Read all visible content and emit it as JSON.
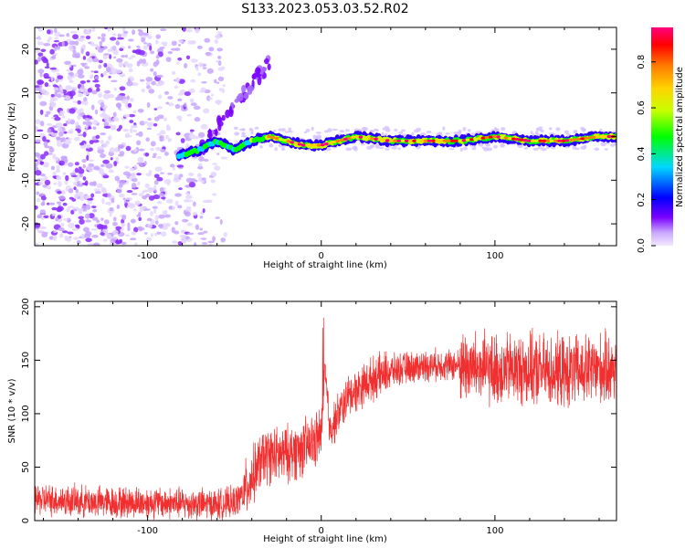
{
  "title": "S133.2023.053.03.52.R02",
  "chart_data": [
    {
      "type": "heatmap",
      "xlabel": "Height of straight line (km)",
      "ylabel": "Frequency (Hz)",
      "xlim": [
        -165,
        170
      ],
      "ylim": [
        -25,
        25
      ],
      "xticks": [
        -100,
        0,
        100
      ],
      "yticks": [
        -20,
        -10,
        0,
        10,
        20
      ],
      "grid": false,
      "colorbar": {
        "label": "Normalized spectral amplitude",
        "range": [
          0.0,
          0.95
        ],
        "ticks": [
          0.0,
          0.2,
          0.4,
          0.6,
          0.8
        ],
        "colormap": [
          "#f3e8ff",
          "#7a00ff",
          "#0000ff",
          "#00d8ff",
          "#00ff00",
          "#c8ff00",
          "#ffd400",
          "#ff8000",
          "#ff0000",
          "#ff0080"
        ]
      },
      "features": {
        "noise_region_x": [
          -165,
          -55
        ],
        "noise_density_note": "scattered low-amplitude speckle",
        "dispersed_branch": {
          "x": [
            -70,
            -30
          ],
          "y": [
            -3,
            17
          ]
        },
        "carrier_track": [
          {
            "x": -82,
            "y": -4.5
          },
          {
            "x": -70,
            "y": -3
          },
          {
            "x": -60,
            "y": -1
          },
          {
            "x": -50,
            "y": -3
          },
          {
            "x": -40,
            "y": -1
          },
          {
            "x": -30,
            "y": 0
          },
          {
            "x": -20,
            "y": -1
          },
          {
            "x": -10,
            "y": -2
          },
          {
            "x": 0,
            "y": -2
          },
          {
            "x": 10,
            "y": -1
          },
          {
            "x": 20,
            "y": 0
          },
          {
            "x": 40,
            "y": -1
          },
          {
            "x": 60,
            "y": -1
          },
          {
            "x": 80,
            "y": -1
          },
          {
            "x": 100,
            "y": 0
          },
          {
            "x": 120,
            "y": -1
          },
          {
            "x": 140,
            "y": -1
          },
          {
            "x": 160,
            "y": 0
          },
          {
            "x": 170,
            "y": 0
          }
        ]
      }
    },
    {
      "type": "line",
      "xlabel": "Height of straight line (km)",
      "ylabel": "SNR (10 * v/v)",
      "xlim": [
        -165,
        170
      ],
      "ylim": [
        0,
        205
      ],
      "xticks": [
        -100,
        0,
        100
      ],
      "yticks": [
        0,
        50,
        100,
        150,
        200
      ],
      "grid": false,
      "series": [
        {
          "color": "#f03030",
          "x": [
            -165,
            -140,
            -120,
            -100,
            -80,
            -60,
            -50,
            -45,
            -40,
            -35,
            -30,
            -25,
            -20,
            -15,
            -10,
            -5,
            0,
            2,
            5,
            10,
            15,
            20,
            25,
            30,
            40,
            50,
            60,
            70,
            80,
            90,
            100,
            110,
            120,
            130,
            140,
            150,
            160,
            170
          ],
          "y": [
            20,
            18,
            17,
            17,
            16,
            15,
            17,
            25,
            40,
            55,
            62,
            60,
            62,
            65,
            68,
            72,
            80,
            140,
            85,
            100,
            115,
            122,
            128,
            133,
            140,
            143,
            145,
            146,
            145,
            143,
            140,
            142,
            141,
            140,
            138,
            140,
            141,
            143
          ]
        }
      ]
    }
  ]
}
